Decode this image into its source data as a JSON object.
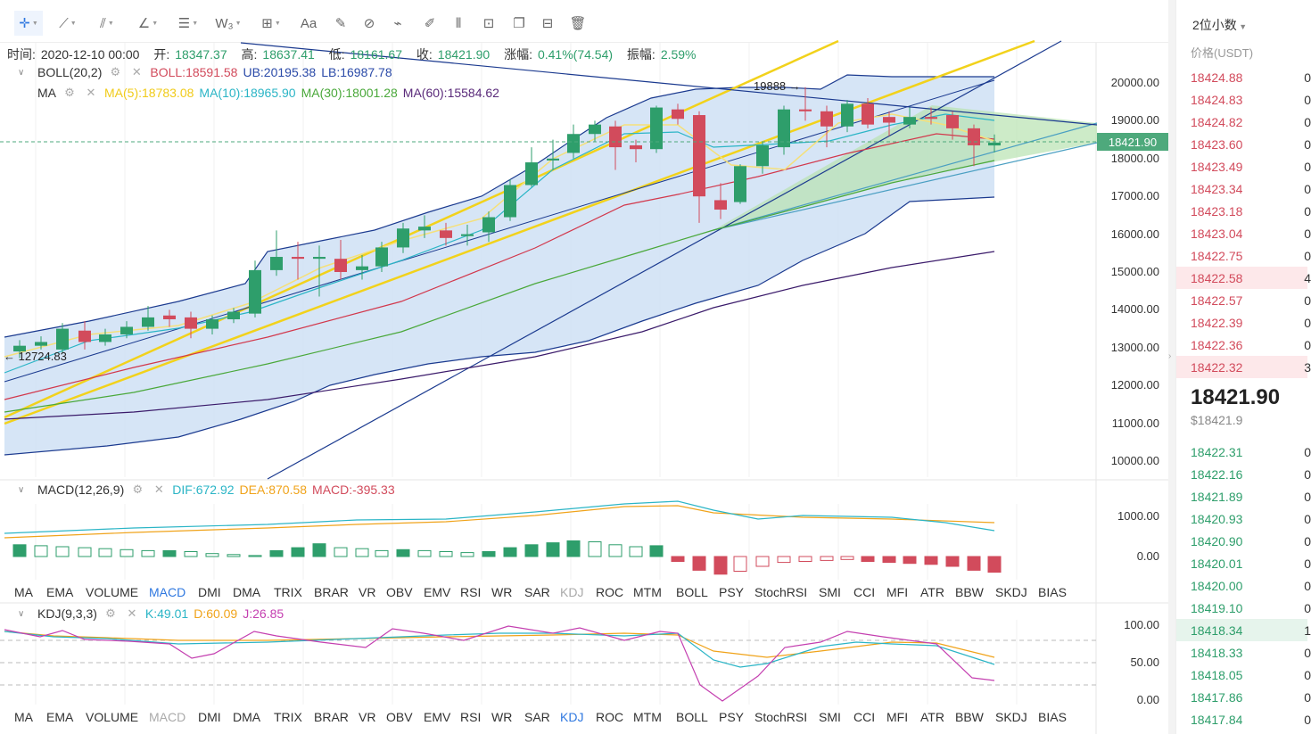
{
  "toolbar": {
    "tools": [
      {
        "name": "crosshair-icon",
        "glyph": "✛",
        "active": true
      },
      {
        "name": "trendline-icon",
        "glyph": "⟋"
      },
      {
        "name": "multi-line-icon",
        "glyph": "⫽"
      },
      {
        "name": "angle-icon",
        "glyph": "∠"
      },
      {
        "name": "fib-icon",
        "glyph": "☰"
      },
      {
        "name": "wave-icon",
        "glyph": "W₃"
      },
      {
        "name": "box-icon",
        "glyph": "⊞"
      },
      {
        "name": "text-icon",
        "glyph": "Aa"
      },
      {
        "name": "brush-icon",
        "glyph": "✎"
      },
      {
        "name": "eraser-icon",
        "glyph": "⊘"
      },
      {
        "name": "ruler-icon",
        "glyph": "⌁"
      },
      {
        "name": "pencil-icon",
        "glyph": "✐"
      },
      {
        "name": "pattern-icon",
        "glyph": "⦀"
      },
      {
        "name": "lock-icon",
        "glyph": "⊡"
      },
      {
        "name": "copy-icon",
        "glyph": "❐"
      },
      {
        "name": "measure-icon",
        "glyph": "⊟"
      },
      {
        "name": "trash-icon",
        "glyph": "🗑"
      }
    ]
  },
  "ohlc": {
    "time_label": "时间:",
    "time": "2020-12-10 00:00",
    "open_label": "开:",
    "open": "18347.37",
    "high_label": "高:",
    "high": "18637.41",
    "low_label": "低:",
    "low": "18161.67",
    "close_label": "收:",
    "close": "18421.90",
    "change_label": "涨幅:",
    "change": "0.41%(74.54)",
    "amp_label": "振幅:",
    "amp": "2.59%"
  },
  "boll": {
    "title": "BOLL(20,2)",
    "boll": "BOLL:18591.58",
    "ub": "UB:20195.38",
    "lb": "LB:16987.78"
  },
  "ma": {
    "title": "MA",
    "ma5": "MA(5):18783.08",
    "ma10": "MA(10):18965.90",
    "ma30": "MA(30):18001.28",
    "ma60": "MA(60):15584.62"
  },
  "macd": {
    "title": "MACD(12,26,9)",
    "dif": "DIF:672.92",
    "dea": "DEA:870.58",
    "macd": "MACD:-395.33"
  },
  "kdj": {
    "title": "KDJ(9,3,3)",
    "k": "K:49.01",
    "d": "D:60.09",
    "j": "J:26.85"
  },
  "main_axis": [
    "20000.00",
    "19000.00",
    "18000.00",
    "17000.00",
    "16000.00",
    "15000.00",
    "14000.00",
    "13000.00",
    "12000.00",
    "11000.00",
    "10000.00"
  ],
  "macd_axis": [
    "1000.00",
    "0.00"
  ],
  "kdj_axis": [
    "100.00",
    "50.00",
    "0.00"
  ],
  "current_price_tag": "18421.90",
  "annotations": {
    "high_mark": "19888 →",
    "low_mark": "← 12724.83"
  },
  "indicator_tabs_1": {
    "items": [
      "MA",
      "EMA",
      "VOLUME",
      "MACD",
      "DMI",
      "DMA",
      "TRIX",
      "BRAR",
      "VR",
      "OBV",
      "EMV",
      "RSI",
      "WR",
      "SAR",
      "KDJ",
      "ROC",
      "MTM",
      "BOLL",
      "PSY",
      "StochRSI",
      "SMI",
      "CCI",
      "MFI",
      "ATR",
      "BBW",
      "SKDJ",
      "BIAS"
    ],
    "active": "MACD",
    "dim": "KDJ"
  },
  "indicator_tabs_2": {
    "items": [
      "MA",
      "EMA",
      "VOLUME",
      "MACD",
      "DMI",
      "DMA",
      "TRIX",
      "BRAR",
      "VR",
      "OBV",
      "EMV",
      "RSI",
      "WR",
      "SAR",
      "KDJ",
      "ROC",
      "MTM",
      "BOLL",
      "PSY",
      "StochRSI",
      "SMI",
      "CCI",
      "MFI",
      "ATR",
      "BBW",
      "SKDJ",
      "BIAS"
    ],
    "active": "KDJ",
    "dim": "MACD"
  },
  "orderbook": {
    "decimals": "2位小数",
    "price_header": "价格(USDT)",
    "asks": [
      "18424.88",
      "18424.83",
      "18424.82",
      "18423.60",
      "18423.49",
      "18423.34",
      "18423.18",
      "18423.04",
      "18422.75",
      "18422.58",
      "18422.57",
      "18422.39",
      "18422.36",
      "18422.32"
    ],
    "ask_amounts": [
      "0",
      "0",
      "0",
      "0",
      "0",
      "0",
      "0",
      "0",
      "0",
      "4",
      "0",
      "0",
      "0",
      "3"
    ],
    "last_price": "18421.90",
    "last_usd": "$18421.9",
    "bids": [
      "18422.31",
      "18422.16",
      "18421.89",
      "18420.93",
      "18420.90",
      "18420.01",
      "18420.00",
      "18419.10",
      "18418.34",
      "18418.33",
      "18418.05",
      "18417.86",
      "18417.84"
    ],
    "bid_amounts": [
      "0",
      "0",
      "0",
      "0",
      "0",
      "0",
      "0",
      "0",
      "1",
      "0",
      "0",
      "0",
      "0"
    ]
  },
  "colors": {
    "up": "#2e9e6b",
    "down": "#d24b5c",
    "boll_fill": "#cfe0f5",
    "yellow": "#f2d21b",
    "navy": "#1b3a8f"
  }
}
